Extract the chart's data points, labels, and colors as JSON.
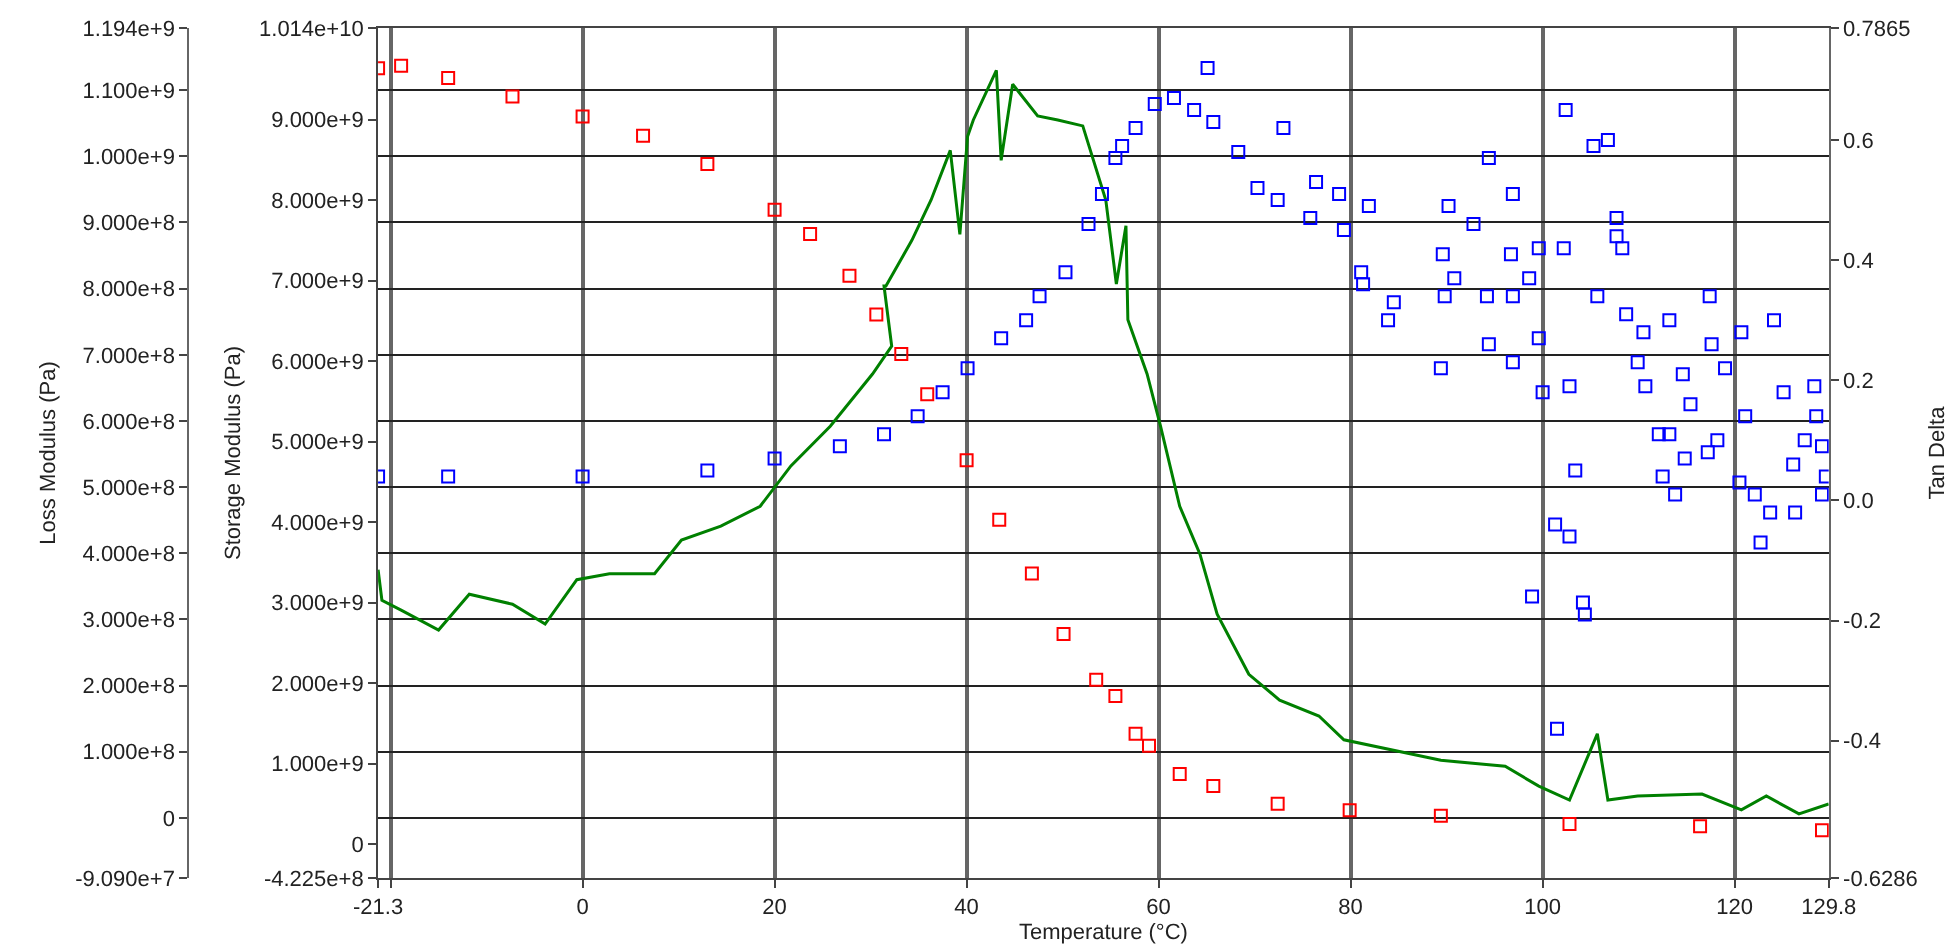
{
  "chart_data": {
    "type": "scatter",
    "xlabel": "Temperature (°C)",
    "ylabel": "Loss Modulus (Pa)",
    "y2label": "Storage Modulus (Pa)",
    "y3label": "Tan Delta",
    "xlim": [
      -21.3,
      129.8
    ],
    "xticks": [
      {
        "value": -21.3,
        "label": "-21.3"
      },
      {
        "value": -20,
        "label": null
      },
      0,
      20,
      40,
      60,
      80,
      100,
      120,
      {
        "value": 129.8,
        "label": "129.8"
      }
    ],
    "ylim": [
      -90900000,
      1194000000
    ],
    "yticks": [
      {
        "value": -90900000,
        "label": "-9.090e+7"
      },
      0,
      {
        "value": 100000000,
        "label": "1.000e+8"
      },
      {
        "value": 200000000,
        "label": "2.000e+8"
      },
      {
        "value": 300000000,
        "label": "3.000e+8"
      },
      {
        "value": 400000000,
        "label": "4.000e+8"
      },
      {
        "value": 500000000,
        "label": "5.000e+8"
      },
      {
        "value": 600000000,
        "label": "6.000e+8"
      },
      {
        "value": 700000000,
        "label": "7.000e+8"
      },
      {
        "value": 800000000,
        "label": "8.000e+8"
      },
      {
        "value": 900000000,
        "label": "9.000e+8"
      },
      {
        "value": 1000000000,
        "label": "1.000e+9"
      },
      {
        "value": 1100000000,
        "label": "1.100e+9"
      },
      {
        "value": 1194000000,
        "label": "1.194e+9"
      }
    ],
    "y2lim": [
      -422500000,
      10140000000
    ],
    "y2ticks": [
      {
        "value": -422500000,
        "label": "-4.225e+8"
      },
      0,
      {
        "value": 1000000000,
        "label": "1.000e+9"
      },
      {
        "value": 2000000000,
        "label": "2.000e+9"
      },
      {
        "value": 3000000000,
        "label": "3.000e+9"
      },
      {
        "value": 4000000000,
        "label": "4.000e+9"
      },
      {
        "value": 5000000000,
        "label": "5.000e+9"
      },
      {
        "value": 6000000000,
        "label": "6.000e+9"
      },
      {
        "value": 7000000000,
        "label": "7.000e+9"
      },
      {
        "value": 8000000000,
        "label": "8.000e+9"
      },
      {
        "value": 9000000000,
        "label": "9.000e+9"
      },
      {
        "value": 10140000000,
        "label": "1.014e+10"
      }
    ],
    "y3lim": [
      -0.6286,
      0.7865
    ],
    "y3ticks": [
      {
        "value": -0.6286,
        "label": "-0.6286"
      },
      {
        "value": -0.4,
        "label": "-0.4"
      },
      {
        "value": -0.2,
        "label": "-0.2"
      },
      {
        "value": 0,
        "label": "0.0"
      },
      {
        "value": 0.2,
        "label": "0.2"
      },
      {
        "value": 0.4,
        "label": "0.4"
      },
      {
        "value": 0.6,
        "label": "0.6"
      },
      {
        "value": 0.7865,
        "label": "0.7865"
      }
    ],
    "grid": true,
    "marker": "square",
    "series": [
      {
        "type": "line",
        "axis": "y",
        "marker": "none",
        "color": "#008000",
        "x": [
          -21.3,
          -20.9,
          -18.9,
          -15,
          -11.8,
          -7.3,
          -3.9,
          -0.6,
          2.8,
          7.5,
          10.3,
          14.4,
          18.5,
          21.7,
          25.8,
          30.2,
          32.2,
          31.4,
          31.6,
          34.3,
          36.3,
          38.3,
          39.3,
          40.1,
          40.7,
          43.1,
          43.6,
          44.8,
          47.4,
          49.5,
          52.1,
          54.5,
          55.6,
          56.6,
          56.8,
          58.8,
          60.2,
          62.2,
          64.3,
          66.1,
          69.4,
          72.6,
          76.7,
          79.3,
          89.4,
          96.1,
          99.6,
          102.8,
          105.7,
          106.8,
          109.9,
          116.6,
          120.7,
          123.3,
          126.7,
          129.8
        ],
        "values": [
          375000000,
          329000000,
          314000000,
          284000000,
          338000000,
          323000000,
          293000000,
          360000000,
          369000000,
          369000000,
          420000000,
          441000000,
          471000000,
          532000000,
          592000000,
          671000000,
          713000000,
          804000000,
          804000000,
          873000000,
          934000000,
          1009000000,
          882000000,
          1030000000,
          1055000000,
          1130000000,
          994000000,
          1109000000,
          1061000000,
          1055000000,
          1046000000,
          934000000,
          807000000,
          895000000,
          753000000,
          671000000,
          592000000,
          471000000,
          399000000,
          308000000,
          217000000,
          178000000,
          154000000,
          118000000,
          87000000,
          78000000,
          48000000,
          27000000,
          127000000,
          27000000,
          33000000,
          36000000,
          12000000,
          33000000,
          6000000,
          21000000
        ]
      },
      {
        "axis": "y2",
        "color": "#ff0000",
        "x": [
          -21.3,
          -18.9,
          -14,
          -7.3,
          0,
          6.3,
          13,
          20,
          23.7,
          27.8,
          30.6,
          33.2,
          35.9,
          40,
          43.4,
          46.8,
          50.1,
          53.5,
          55.5,
          57.6,
          59,
          62.2,
          65.7,
          72.4,
          79.9,
          89.4,
          102.8,
          116.4,
          129.1
        ],
        "values": [
          9640000000,
          9670000000,
          9520000000,
          9290000000,
          9040000000,
          8800000000,
          8450000000,
          7880000000,
          7580000000,
          7060000000,
          6580000000,
          6090000000,
          5590000000,
          4770000000,
          4030000000,
          3360000000,
          2610000000,
          2040000000,
          1840000000,
          1370000000,
          1220000000,
          870000000,
          720000000,
          500000000,
          420000000,
          350000000,
          250000000,
          220000000,
          170000000
        ]
      },
      {
        "axis": "y3",
        "color": "#0000ff",
        "x": [
          -21.3,
          -14,
          0,
          13,
          20,
          26.8,
          31.4,
          34.9,
          37.5,
          40.1,
          43.6,
          46.2,
          47.6,
          50.3,
          52.7,
          54.1,
          56.2,
          55.5,
          57.6,
          59.6,
          61.6,
          63.7,
          65.7,
          68.3,
          70.3,
          72.4,
          75.8,
          79.3,
          65.1,
          73,
          76.4,
          78.8,
          81.9,
          81.3,
          81.1,
          84.5,
          83.9,
          89.6,
          90.2,
          89.8,
          89.4,
          92.8,
          94.4,
          90.8,
          94.2,
          94.4,
          96.9,
          96.7,
          96.9,
          96.9,
          99.6,
          98.6,
          99.6,
          100,
          98.9,
          101.3,
          101.5,
          102.2,
          102.4,
          102.8,
          103.4,
          102.8,
          104.2,
          105.7,
          105.3,
          104.4,
          107.7,
          107.7,
          106.8,
          108.3,
          108.7,
          109.9,
          110.7,
          110.5,
          112.1,
          112.5,
          113.2,
          113.8,
          113.2,
          114.6,
          114.8,
          115.4,
          117.2,
          117.4,
          117.6,
          118.2,
          119,
          120.7,
          120.5,
          121.1,
          122.1,
          122.7,
          123.7,
          124.1,
          125.1,
          126.1,
          126.3,
          127.3,
          128.3,
          128.5,
          129.1,
          129.1,
          129.5
        ],
        "values": [
          0.04,
          0.04,
          0.04,
          0.05,
          0.07,
          0.09,
          0.11,
          0.14,
          0.18,
          0.22,
          0.27,
          0.3,
          0.34,
          0.38,
          0.46,
          0.51,
          0.59,
          0.57,
          0.62,
          0.66,
          0.67,
          0.65,
          0.63,
          0.58,
          0.52,
          0.5,
          0.47,
          0.45,
          0.72,
          0.62,
          0.53,
          0.51,
          0.49,
          0.36,
          0.38,
          0.33,
          0.3,
          0.41,
          0.49,
          0.34,
          0.22,
          0.46,
          0.57,
          0.37,
          0.34,
          0.26,
          0.51,
          0.41,
          0.34,
          0.23,
          0.42,
          0.37,
          0.27,
          0.18,
          -0.16,
          -0.04,
          -0.38,
          0.42,
          0.65,
          0.19,
          0.05,
          -0.06,
          -0.17,
          0.34,
          0.59,
          -0.19,
          0.47,
          0.44,
          0.6,
          0.42,
          0.31,
          0.23,
          0.19,
          0.28,
          0.11,
          0.04,
          0.11,
          0.01,
          0.3,
          0.21,
          0.07,
          0.16,
          0.08,
          0.34,
          0.26,
          0.1,
          0.22,
          0.28,
          0.03,
          0.14,
          0.01,
          -0.07,
          -0.02,
          0.3,
          0.18,
          0.06,
          -0.02,
          0.1,
          0.19,
          0.14,
          0.01,
          0.09,
          0.04
        ]
      }
    ]
  }
}
